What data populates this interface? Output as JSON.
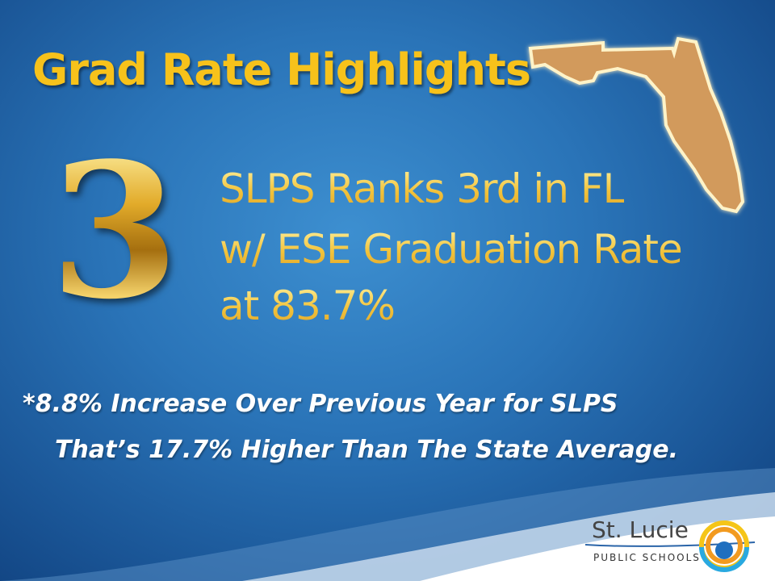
{
  "slide": {
    "title": "Grad Rate Highlights",
    "rank_number": "3",
    "headline_lines": [
      "SLPS Ranks 3rd in FL",
      "w/ ESE Graduation Rate",
      "at 83.7%"
    ],
    "note_lines": [
      "*8.8% Increase Over Previous Year for SLPS",
      "That’s 17.7% Higher Than The State Average."
    ]
  },
  "logo": {
    "name": "St. Lucie",
    "subtitle": "PUBLIC SCHOOLS"
  },
  "colors": {
    "title": "#f7c21b",
    "background": "#2a74b8",
    "florida": "#d29a5c"
  }
}
